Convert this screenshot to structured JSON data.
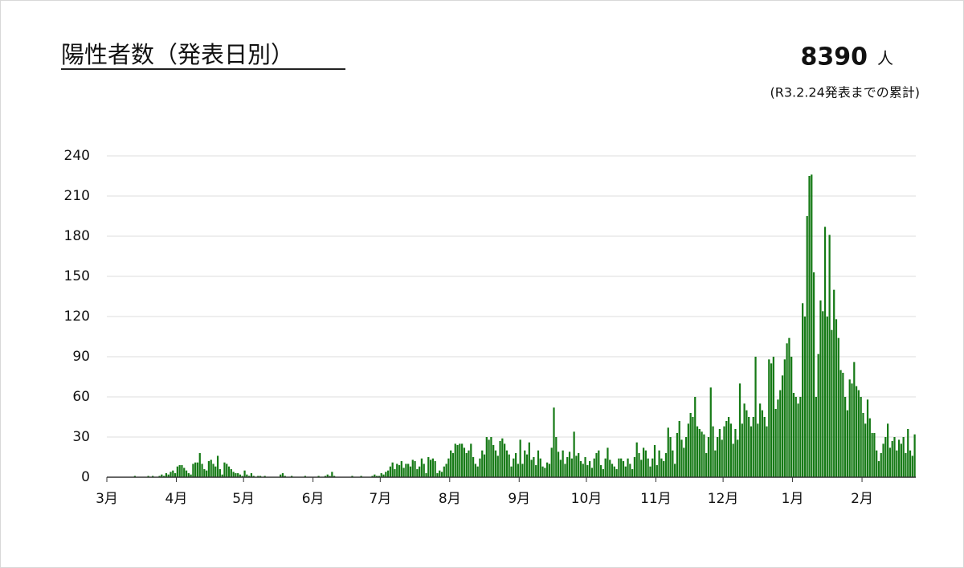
{
  "chart_data": {
    "type": "bar",
    "title": "陽性者数（発表日別）",
    "total": 8390,
    "total_unit": "人",
    "total_note": "(R3.2.24発表までの累計)",
    "color": "#167a16",
    "grid": true,
    "ylim": [
      0,
      240
    ],
    "yticks": [
      0,
      30,
      60,
      90,
      120,
      150,
      180,
      210,
      240
    ],
    "categories": [
      "3月",
      null,
      null,
      null,
      null,
      null,
      null,
      null,
      null,
      null,
      null,
      null,
      null,
      null,
      null,
      null,
      null,
      null,
      null,
      null,
      null,
      null,
      null,
      null,
      null,
      null,
      null,
      null,
      null,
      null,
      null,
      "4月",
      null,
      null,
      null,
      null,
      null,
      null,
      null,
      null,
      null,
      null,
      null,
      null,
      null,
      null,
      null,
      null,
      null,
      null,
      null,
      null,
      null,
      null,
      null,
      null,
      null,
      null,
      null,
      null,
      null,
      "5月",
      null,
      null,
      null,
      null,
      null,
      null,
      null,
      null,
      null,
      null,
      null,
      null,
      null,
      null,
      null,
      null,
      null,
      null,
      null,
      null,
      null,
      null,
      null,
      null,
      null,
      null,
      null,
      null,
      null,
      null,
      "6月",
      null,
      null,
      null,
      null,
      null,
      null,
      null,
      null,
      null,
      null,
      null,
      null,
      null,
      null,
      null,
      null,
      null,
      null,
      null,
      null,
      null,
      null,
      null,
      null,
      null,
      null,
      null,
      null,
      null,
      "7月",
      null,
      null,
      null,
      null,
      null,
      null,
      null,
      null,
      null,
      null,
      null,
      null,
      null,
      null,
      null,
      null,
      null,
      null,
      null,
      null,
      null,
      null,
      null,
      null,
      null,
      null,
      null,
      null,
      null,
      null,
      "8月",
      null,
      null,
      null,
      null,
      null,
      null,
      null,
      null,
      null,
      null,
      null,
      null,
      null,
      null,
      null,
      null,
      null,
      null,
      null,
      null,
      null,
      null,
      null,
      null,
      null,
      null,
      null,
      null,
      null,
      null,
      "9月",
      null,
      null,
      null,
      null,
      null,
      null,
      null,
      null,
      null,
      null,
      null,
      null,
      null,
      null,
      null,
      null,
      null,
      null,
      null,
      null,
      null,
      null,
      null,
      null,
      null,
      null,
      null,
      null,
      null,
      "10月",
      null,
      null,
      null,
      null,
      null,
      null,
      null,
      null,
      null,
      null,
      null,
      null,
      null,
      null,
      null,
      null,
      null,
      null,
      null,
      null,
      null,
      null,
      null,
      null,
      null,
      null,
      null,
      null,
      null,
      null,
      "11月",
      null,
      null,
      null,
      null,
      null,
      null,
      null,
      null,
      null,
      null,
      null,
      null,
      null,
      null,
      null,
      null,
      null,
      null,
      null,
      null,
      null,
      null,
      null,
      null,
      null,
      null,
      null,
      null,
      null,
      "12月",
      null,
      null,
      null,
      null,
      null,
      null,
      null,
      null,
      null,
      null,
      null,
      null,
      null,
      null,
      null,
      null,
      null,
      null,
      null,
      null,
      null,
      null,
      null,
      null,
      null,
      null,
      null,
      null,
      null,
      null,
      "1月",
      null,
      null,
      null,
      null,
      null,
      null,
      null,
      null,
      null,
      null,
      null,
      null,
      null,
      null,
      null,
      null,
      null,
      null,
      null,
      null,
      null,
      null,
      null,
      null,
      null,
      null,
      null,
      null,
      null,
      null,
      "2月",
      null,
      null,
      null,
      null,
      null,
      null,
      null,
      null,
      null,
      null,
      null,
      null,
      null,
      null,
      null,
      null,
      null,
      null,
      null,
      null,
      null,
      null,
      null
    ],
    "values": [
      0,
      0,
      0,
      0,
      0,
      0,
      0,
      0,
      0,
      0,
      0,
      0,
      1,
      0,
      0,
      0,
      0,
      0,
      1,
      0,
      1,
      0,
      0,
      1,
      2,
      1,
      3,
      2,
      4,
      5,
      3,
      8,
      9,
      9,
      7,
      5,
      3,
      2,
      10,
      11,
      11,
      18,
      10,
      6,
      5,
      12,
      13,
      10,
      8,
      16,
      6,
      2,
      11,
      10,
      8,
      6,
      4,
      3,
      3,
      2,
      1,
      5,
      2,
      1,
      3,
      1,
      0,
      1,
      1,
      0,
      1,
      0,
      0,
      0,
      0,
      0,
      0,
      2,
      3,
      1,
      0,
      0,
      1,
      0,
      0,
      0,
      0,
      0,
      1,
      0,
      0,
      0,
      0,
      0,
      1,
      0,
      0,
      1,
      2,
      1,
      4,
      1,
      0,
      0,
      0,
      0,
      0,
      0,
      0,
      1,
      0,
      0,
      0,
      1,
      0,
      0,
      0,
      0,
      1,
      2,
      1,
      1,
      3,
      2,
      4,
      5,
      8,
      11,
      6,
      10,
      9,
      12,
      7,
      10,
      10,
      8,
      13,
      12,
      6,
      8,
      14,
      10,
      3,
      15,
      13,
      14,
      12,
      3,
      5,
      4,
      8,
      10,
      14,
      20,
      18,
      25,
      24,
      25,
      25,
      22,
      18,
      20,
      25,
      15,
      10,
      8,
      14,
      20,
      17,
      30,
      28,
      30,
      24,
      20,
      16,
      27,
      29,
      25,
      20,
      17,
      8,
      14,
      18,
      10,
      28,
      10,
      20,
      17,
      26,
      13,
      15,
      9,
      20,
      14,
      8,
      7,
      11,
      10,
      22,
      52,
      30,
      19,
      13,
      20,
      10,
      15,
      19,
      14,
      34,
      16,
      18,
      12,
      10,
      15,
      9,
      12,
      7,
      14,
      18,
      20,
      9,
      6,
      14,
      22,
      13,
      10,
      8,
      6,
      14,
      14,
      12,
      8,
      14,
      10,
      6,
      15,
      26,
      18,
      13,
      22,
      20,
      14,
      8,
      14,
      24,
      9,
      20,
      14,
      12,
      18,
      37,
      30,
      20,
      10,
      33,
      42,
      28,
      22,
      30,
      40,
      48,
      45,
      60,
      38,
      36,
      34,
      32,
      18,
      30,
      67,
      38,
      20,
      30,
      36,
      28,
      38,
      42,
      45,
      40,
      25,
      36,
      28,
      70,
      40,
      55,
      50,
      45,
      38,
      45,
      90,
      40,
      55,
      50,
      45,
      38,
      88,
      85,
      90,
      51,
      58,
      65,
      76,
      88,
      100,
      104,
      90,
      63,
      60,
      55,
      60,
      130,
      120,
      195,
      225,
      226,
      153,
      60,
      92,
      132,
      124,
      187,
      120,
      181,
      110,
      140,
      118,
      104,
      80,
      78,
      60,
      50,
      73,
      70,
      86,
      68,
      65,
      60,
      48,
      40,
      58,
      44,
      33,
      33,
      20,
      12,
      18,
      25,
      30,
      40,
      22,
      27,
      30,
      20,
      28,
      25,
      30,
      18,
      36,
      20,
      16,
      32
    ]
  }
}
